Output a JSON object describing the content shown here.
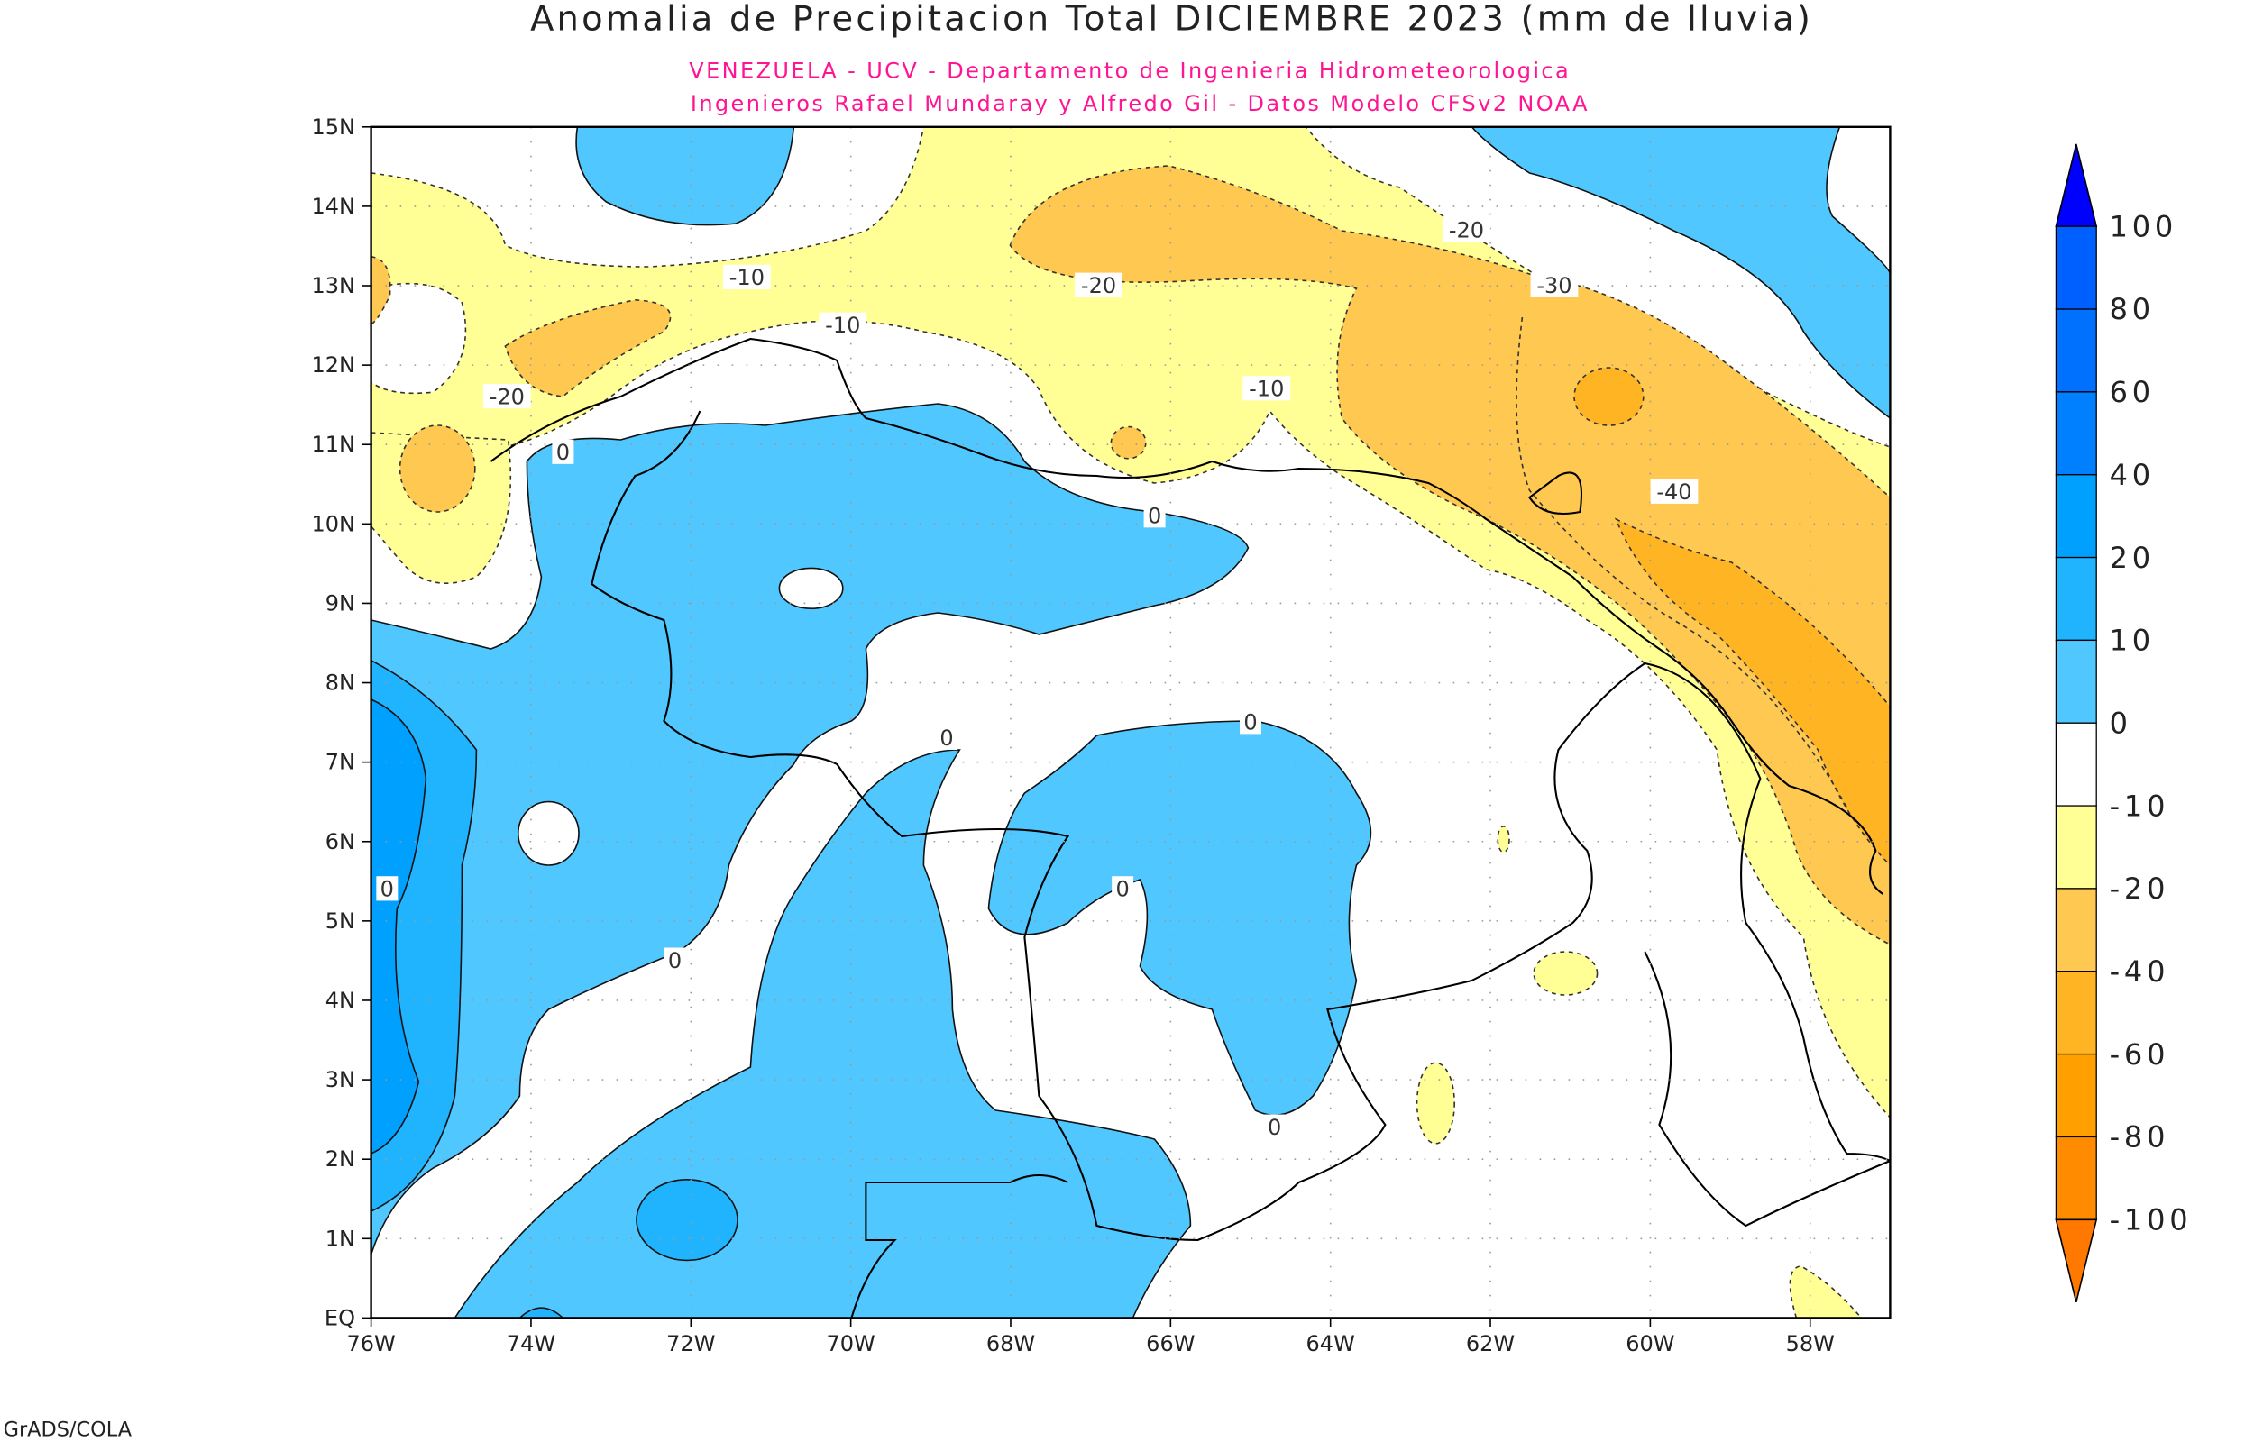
{
  "title": "Anomalia de Precipitacion Total DICIEMBRE 2023 (mm de lluvia)",
  "subtitle_1": "VENEZUELA - UCV - Departamento de Ingenieria Hidrometeorologica",
  "subtitle_2": "Ingenieros Rafael Mundaray y Alfredo Gil - Datos Modelo CFSv2 NOAA",
  "footer": "GrADS/COLA",
  "lat_labels": [
    "15N",
    "14N",
    "13N",
    "12N",
    "11N",
    "10N",
    "9N",
    "8N",
    "7N",
    "6N",
    "5N",
    "4N",
    "3N",
    "2N",
    "1N",
    "EQ"
  ],
  "lon_labels": [
    "76W",
    "74W",
    "72W",
    "70W",
    "68W",
    "66W",
    "64W",
    "62W",
    "60W",
    "58W"
  ],
  "contour_labels": [
    {
      "text": "-10",
      "lon": -71.3,
      "lat": 13.1
    },
    {
      "text": "-10",
      "lon": -70.1,
      "lat": 12.5
    },
    {
      "text": "-10",
      "lon": -64.8,
      "lat": 11.7
    },
    {
      "text": "-20",
      "lon": -66.9,
      "lat": 13.0
    },
    {
      "text": "-20",
      "lon": -62.3,
      "lat": 13.7
    },
    {
      "text": "-20",
      "lon": -74.3,
      "lat": 11.6
    },
    {
      "text": "-30",
      "lon": -61.2,
      "lat": 13.0
    },
    {
      "text": "-40",
      "lon": -59.7,
      "lat": 10.4
    },
    {
      "text": "0",
      "lon": -73.6,
      "lat": 10.9
    },
    {
      "text": "0",
      "lon": -66.2,
      "lat": 10.1
    },
    {
      "text": "0",
      "lon": -65.0,
      "lat": 7.5
    },
    {
      "text": "0",
      "lon": -68.8,
      "lat": 7.3
    },
    {
      "text": "0",
      "lon": -66.6,
      "lat": 5.4
    },
    {
      "text": "0",
      "lon": -72.2,
      "lat": 4.5
    },
    {
      "text": "0",
      "lon": -64.7,
      "lat": 2.4
    },
    {
      "text": "0",
      "lon": -75.8,
      "lat": 5.4
    }
  ],
  "colorbar": {
    "labels": [
      "100",
      "80",
      "60",
      "40",
      "20",
      "10",
      "0",
      "-10",
      "-20",
      "-40",
      "-60",
      "-80",
      "-100"
    ],
    "colors": [
      "#0060ff",
      "#0070ff",
      "#0080ff",
      "#00a0ff",
      "#20b4ff",
      "#50c8ff",
      "#ffffff",
      "#ffff96",
      "#ffc850",
      "#ffb424",
      "#ffa000",
      "#ff8c00"
    ],
    "over_color": "#0000ff",
    "under_color": "#ff7800"
  },
  "chart_data": {
    "type": "heatmap",
    "title": "Anomalia de Precipitacion Total DICIEMBRE 2023 (mm de lluvia)",
    "units": "mm",
    "lon_range": [
      -76,
      -57
    ],
    "lat_range": [
      0,
      15
    ],
    "levels": [
      -100,
      -80,
      -60,
      -40,
      -20,
      -10,
      0,
      10,
      20,
      40,
      60,
      80,
      100
    ],
    "summary": "Negative anomalies (-10 to -60 mm) over NE Venezuela, Trinidad and Guyana; positive anomalies (0 to 40 mm) over western Venezuela, Colombia and south-central Venezuela"
  }
}
